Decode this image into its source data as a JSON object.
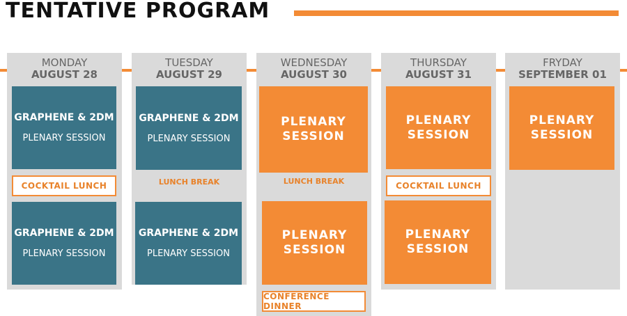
{
  "title": "TENTATIVE PROGRAM",
  "colors": {
    "orange": "#f38b35",
    "teal": "#3a7487",
    "column": "#dadada"
  },
  "days": [
    {
      "day": "MONDAY",
      "date": "AUGUST 28"
    },
    {
      "day": "TUESDAY",
      "date": "AUGUST 29"
    },
    {
      "day": "WEDNESDAY",
      "date": "AUGUST 30"
    },
    {
      "day": "THURSDAY",
      "date": "AUGUST 31"
    },
    {
      "day": "FRYDAY",
      "date": "SEPTEMBER 01"
    }
  ],
  "sessions": {
    "graphene": "GRAPHENE & 2DM",
    "plenary_sub": "PLENARY SESSION",
    "plenary_l1": "PLENARY",
    "plenary_l2": "SESSION"
  },
  "breaks": {
    "cocktail": "COCKTAIL LUNCH",
    "lunch": "LUNCH BREAK",
    "dinner": "CONFERENCE DINNER"
  }
}
